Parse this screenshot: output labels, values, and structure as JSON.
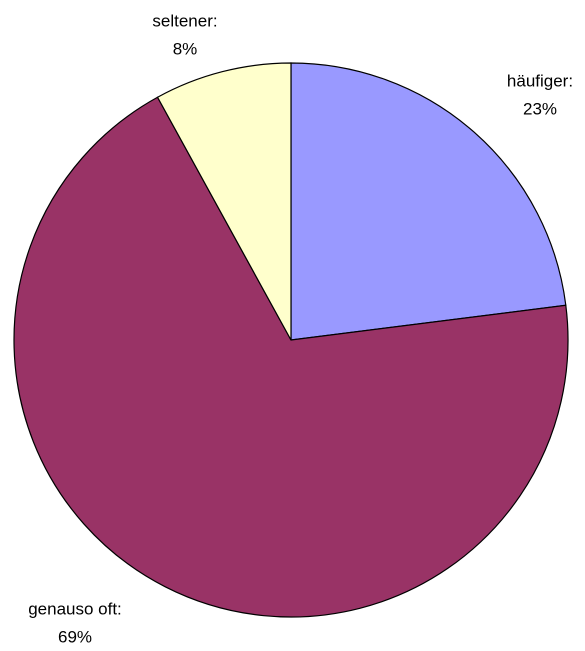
{
  "chart_data": {
    "type": "pie",
    "categories": [
      "häufiger:",
      "genauso oft:",
      "seltener:"
    ],
    "values": [
      23,
      69,
      8
    ],
    "value_labels": [
      "23%",
      "69%",
      "8%"
    ],
    "colors": [
      "#9999ff",
      "#993366",
      "#ffffcc"
    ]
  }
}
